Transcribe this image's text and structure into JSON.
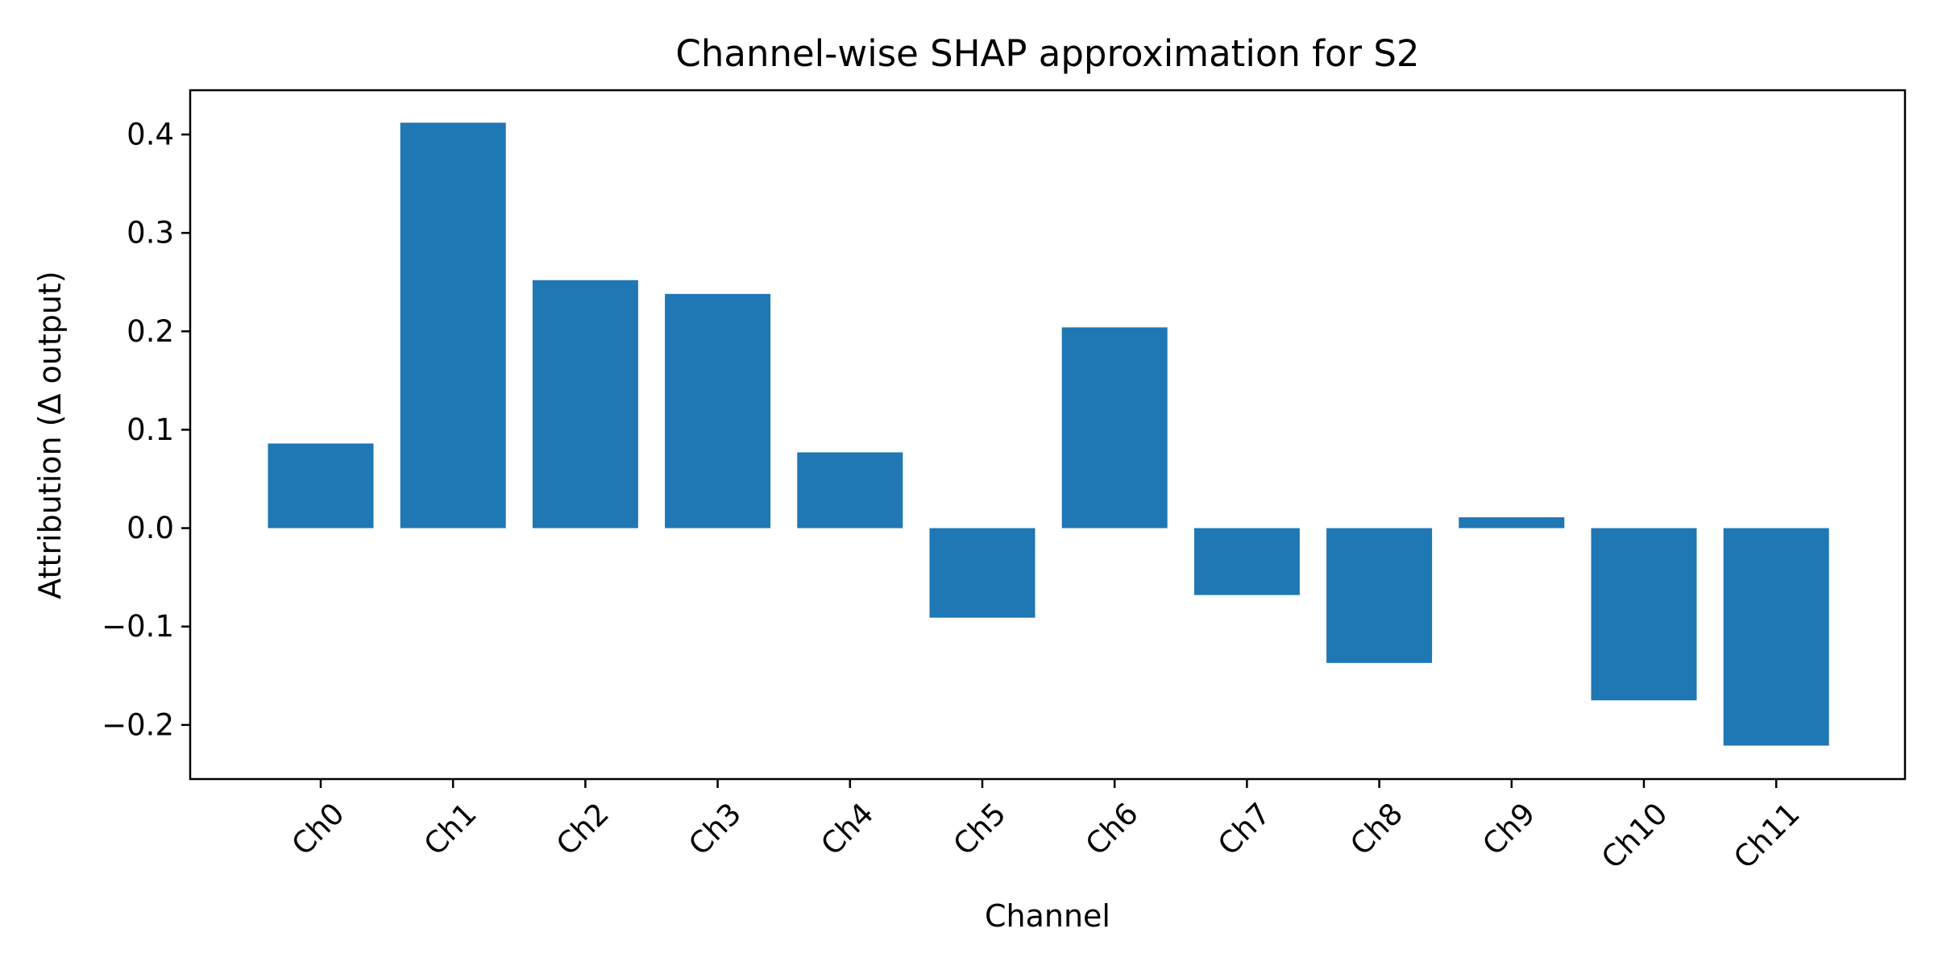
{
  "chart_data": {
    "type": "bar",
    "title": "Channel-wise SHAP approximation for S2",
    "xlabel": "Channel",
    "ylabel": "Attribution (Δ output)",
    "categories": [
      "Ch0",
      "Ch1",
      "Ch2",
      "Ch3",
      "Ch4",
      "Ch5",
      "Ch6",
      "Ch7",
      "Ch8",
      "Ch9",
      "Ch10",
      "Ch11"
    ],
    "values": [
      0.086,
      0.412,
      0.252,
      0.238,
      0.077,
      -0.091,
      0.204,
      -0.068,
      -0.137,
      0.011,
      -0.175,
      -0.221
    ],
    "ylim": [
      -0.255,
      0.445
    ],
    "yticks": [
      -0.2,
      -0.1,
      0.0,
      0.1,
      0.2,
      0.3,
      0.4
    ],
    "ytick_labels": [
      "−0.2",
      "−0.1",
      "0.0",
      "0.1",
      "0.2",
      "0.3",
      "0.4"
    ],
    "x_tick_rotation_deg": 45,
    "bar_color": "#1f77b4",
    "grid": false,
    "legend": false
  }
}
